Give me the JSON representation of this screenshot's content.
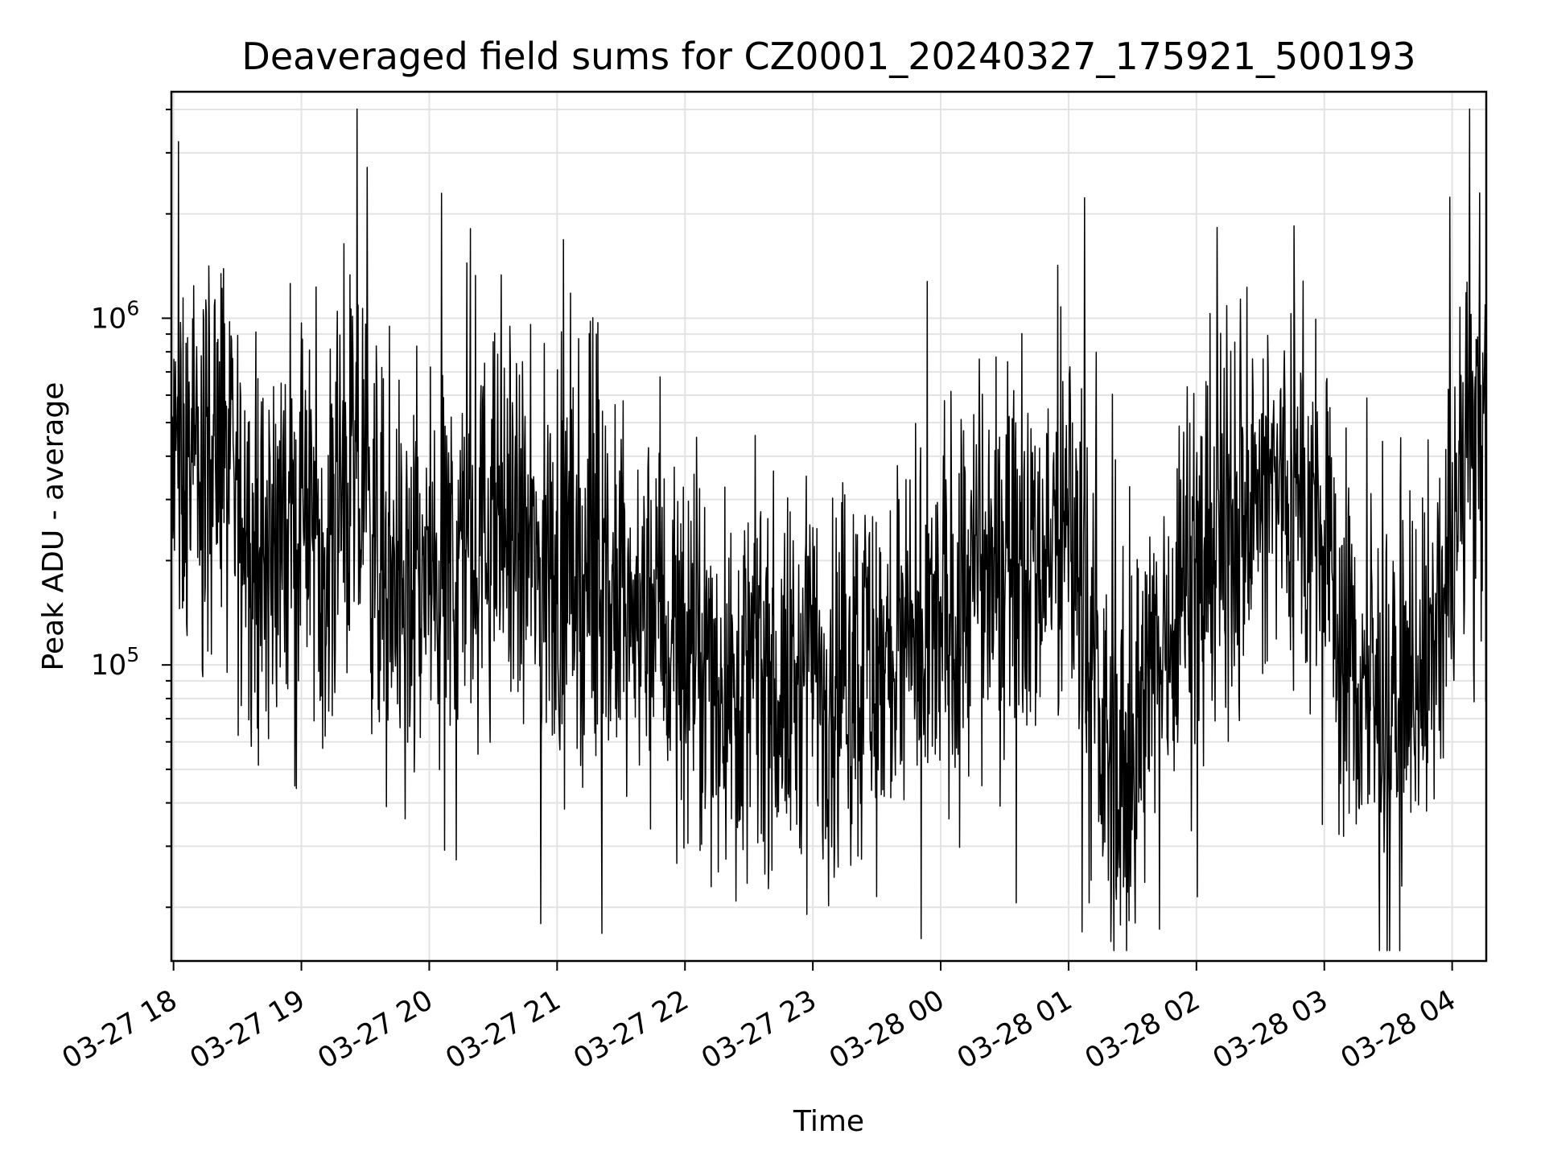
{
  "chart_data": {
    "type": "line",
    "title": "Deaveraged field sums for CZ0001_20240327_175921_500193",
    "xlabel": "Time",
    "ylabel": "Peak ADU - average",
    "yscale": "log",
    "ylim": [
      14000,
      4500000
    ],
    "xlim": [
      "2024-03-27 17:59",
      "2024-03-28 04:16"
    ],
    "grid": true,
    "legend": "none",
    "line_color": "#000000",
    "x_ticks": [
      {
        "label": "03-27 18",
        "t": "2024-03-27 18:00"
      },
      {
        "label": "03-27 19",
        "t": "2024-03-27 19:00"
      },
      {
        "label": "03-27 20",
        "t": "2024-03-27 20:00"
      },
      {
        "label": "03-27 21",
        "t": "2024-03-27 21:00"
      },
      {
        "label": "03-27 22",
        "t": "2024-03-27 22:00"
      },
      {
        "label": "03-27 23",
        "t": "2024-03-27 23:00"
      },
      {
        "label": "03-28 00",
        "t": "2024-03-28 00:00"
      },
      {
        "label": "03-28 01",
        "t": "2024-03-28 01:00"
      },
      {
        "label": "03-28 02",
        "t": "2024-03-28 02:00"
      },
      {
        "label": "03-28 03",
        "t": "2024-03-28 03:00"
      },
      {
        "label": "03-28 04",
        "t": "2024-03-28 04:00"
      }
    ],
    "y_major_ticks": [
      {
        "base": "10",
        "exp": "5",
        "value": 100000
      },
      {
        "base": "10",
        "exp": "6",
        "value": 1000000
      }
    ],
    "series": [
      {
        "x": [
          "2024-03-27 17:59",
          "2024-03-27 18:05",
          "2024-03-27 18:10",
          "2024-03-27 18:15",
          "2024-03-27 18:20",
          "2024-03-27 18:25",
          "2024-03-27 18:30",
          "2024-03-27 18:35",
          "2024-03-27 18:40",
          "2024-03-27 18:45",
          "2024-03-27 18:50",
          "2024-03-27 18:55",
          "2024-03-27 19:00",
          "2024-03-27 19:05",
          "2024-03-27 19:10",
          "2024-03-27 19:15",
          "2024-03-27 19:20",
          "2024-03-27 19:25",
          "2024-03-27 19:30",
          "2024-03-27 19:35",
          "2024-03-27 19:40",
          "2024-03-27 19:45",
          "2024-03-27 19:50",
          "2024-03-27 19:55",
          "2024-03-27 20:00",
          "2024-03-27 20:05",
          "2024-03-27 20:10",
          "2024-03-27 20:15",
          "2024-03-27 20:20",
          "2024-03-27 20:25",
          "2024-03-27 20:30",
          "2024-03-27 20:35",
          "2024-03-27 20:40",
          "2024-03-27 20:45",
          "2024-03-27 20:50",
          "2024-03-27 20:55",
          "2024-03-27 21:00",
          "2024-03-27 21:05",
          "2024-03-27 21:10",
          "2024-03-27 21:15",
          "2024-03-27 21:20",
          "2024-03-27 21:25",
          "2024-03-27 21:30",
          "2024-03-27 21:35",
          "2024-03-27 21:40",
          "2024-03-27 21:45",
          "2024-03-27 21:50",
          "2024-03-27 21:55",
          "2024-03-27 22:00",
          "2024-03-27 22:05",
          "2024-03-27 22:10",
          "2024-03-27 22:15",
          "2024-03-27 22:20",
          "2024-03-27 22:25",
          "2024-03-27 22:30",
          "2024-03-27 22:35",
          "2024-03-27 22:40",
          "2024-03-27 22:45",
          "2024-03-27 22:50",
          "2024-03-27 22:55",
          "2024-03-27 23:00",
          "2024-03-27 23:05",
          "2024-03-27 23:10",
          "2024-03-27 23:15",
          "2024-03-27 23:20",
          "2024-03-27 23:25",
          "2024-03-27 23:30",
          "2024-03-27 23:35",
          "2024-03-27 23:40",
          "2024-03-27 23:45",
          "2024-03-27 23:50",
          "2024-03-27 23:55",
          "2024-03-28 00:00",
          "2024-03-28 00:05",
          "2024-03-28 00:10",
          "2024-03-28 00:15",
          "2024-03-28 00:20",
          "2024-03-28 00:25",
          "2024-03-28 00:30",
          "2024-03-28 00:35",
          "2024-03-28 00:40",
          "2024-03-28 00:45",
          "2024-03-28 00:50",
          "2024-03-28 00:55",
          "2024-03-28 01:00",
          "2024-03-28 01:05",
          "2024-03-28 01:10",
          "2024-03-28 01:15",
          "2024-03-28 01:20",
          "2024-03-28 01:25",
          "2024-03-28 01:30",
          "2024-03-28 01:35",
          "2024-03-28 01:40",
          "2024-03-28 01:45",
          "2024-03-28 01:50",
          "2024-03-28 01:55",
          "2024-03-28 02:00",
          "2024-03-28 02:05",
          "2024-03-28 02:10",
          "2024-03-28 02:15",
          "2024-03-28 02:20",
          "2024-03-28 02:25",
          "2024-03-28 02:30",
          "2024-03-28 02:35",
          "2024-03-28 02:40",
          "2024-03-28 02:45",
          "2024-03-28 02:50",
          "2024-03-28 02:55",
          "2024-03-28 03:00",
          "2024-03-28 03:05",
          "2024-03-28 03:10",
          "2024-03-28 03:15",
          "2024-03-28 03:20",
          "2024-03-28 03:25",
          "2024-03-28 03:30",
          "2024-03-28 03:35",
          "2024-03-28 03:40",
          "2024-03-28 03:45",
          "2024-03-28 03:50",
          "2024-03-28 03:55",
          "2024-03-28 04:00",
          "2024-03-28 04:05",
          "2024-03-28 04:10",
          "2024-03-28 04:15"
        ],
        "y": [
          320000,
          380000,
          350000,
          360000,
          420000,
          330000,
          290000,
          250000,
          230000,
          210000,
          260000,
          240000,
          270000,
          280000,
          230000,
          260000,
          300000,
          320000,
          280000,
          230000,
          190000,
          170000,
          160000,
          170000,
          180000,
          160000,
          190000,
          220000,
          210000,
          230000,
          250000,
          260000,
          230000,
          210000,
          190000,
          180000,
          200000,
          190000,
          180000,
          170000,
          160000,
          150000,
          140000,
          130000,
          140000,
          150000,
          130000,
          120000,
          110000,
          100000,
          90000,
          95000,
          90000,
          85000,
          95000,
          100000,
          90000,
          80000,
          85000,
          90000,
          100000,
          95000,
          90000,
          85000,
          100000,
          110000,
          95000,
          100000,
          110000,
          95000,
          90000,
          110000,
          130000,
          150000,
          160000,
          170000,
          180000,
          200000,
          230000,
          250000,
          220000,
          200000,
          210000,
          230000,
          250000,
          220000,
          100000,
          60000,
          50000,
          48000,
          55000,
          70000,
          90000,
          120000,
          160000,
          190000,
          200000,
          210000,
          230000,
          250000,
          260000,
          280000,
          300000,
          320000,
          330000,
          320000,
          300000,
          250000,
          200000,
          150000,
          110000,
          90000,
          80000,
          75000,
          70000,
          80000,
          95000,
          100000,
          110000,
          120000,
          200000,
          350000,
          450000,
          500000
        ]
      }
    ]
  }
}
